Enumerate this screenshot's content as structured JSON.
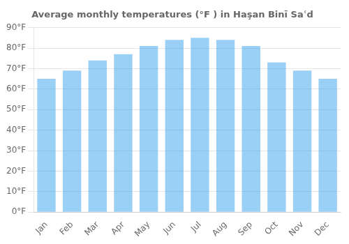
{
  "chart_data": {
    "type": "bar",
    "title": "Average monthly temperatures (°F ) in Haşan Binī Saʿd",
    "categories": [
      "Jan",
      "Feb",
      "Mar",
      "Apr",
      "May",
      "Jun",
      "Jul",
      "Aug",
      "Sep",
      "Oct",
      "Nov",
      "Dec"
    ],
    "values": [
      65,
      69,
      74,
      77,
      81,
      84,
      85,
      84,
      81,
      73,
      69,
      65
    ],
    "ylim": [
      0,
      90
    ],
    "yticks": [
      {
        "value": 0,
        "label": "0°F"
      },
      {
        "value": 10,
        "label": "10°F"
      },
      {
        "value": 20,
        "label": "20°F"
      },
      {
        "value": 30,
        "label": "30°F"
      },
      {
        "value": 40,
        "label": "40°F"
      },
      {
        "value": 50,
        "label": "50°F"
      },
      {
        "value": 60,
        "label": "60°F"
      },
      {
        "value": 70,
        "label": "70°F"
      },
      {
        "value": 80,
        "label": "80°F"
      },
      {
        "value": 90,
        "label": "90°F"
      }
    ],
    "grid": true
  }
}
